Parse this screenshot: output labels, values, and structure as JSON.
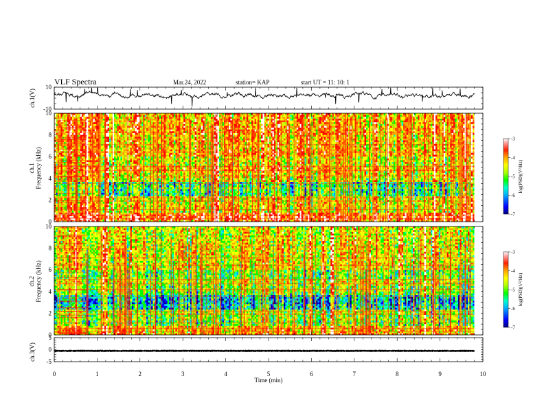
{
  "header": {
    "title": "VLF Spectra",
    "date": "Mar.24, 2022",
    "station": "station= KAP",
    "start": "start  UT =   11: 10: 1"
  },
  "chart_data": [
    {
      "type": "line",
      "panel": "ch1-waveform",
      "ylabel": "ch.1(V)",
      "ylim": [
        -10,
        10
      ],
      "yticks": [
        "10",
        "-10"
      ],
      "xlim": [
        0,
        10
      ],
      "series": [
        {
          "values_summary": "noisy signal oscillating roughly between -2 and 6 V over 0-9.8 min",
          "color": "#000000"
        }
      ]
    },
    {
      "type": "heatmap",
      "panel": "ch1-spectrogram",
      "ylabel": [
        "ch.1",
        "Frequency  (kHz)"
      ],
      "ylim": [
        0,
        10
      ],
      "yticks": [
        "0",
        "2",
        "4",
        "6",
        "8",
        "10"
      ],
      "xlim": [
        0,
        9.8
      ],
      "colorbar": {
        "label": "log(PSD)(V²/Hz)",
        "range": [
          -7,
          -3
        ],
        "ticks": [
          "-3",
          "-4",
          "-5",
          "-6",
          "-7"
        ]
      }
    },
    {
      "type": "heatmap",
      "panel": "ch2-spectrogram",
      "ylabel": [
        "ch.2",
        "Frequency  (kHz)"
      ],
      "ylim": [
        0,
        10
      ],
      "yticks": [
        "0",
        "2",
        "4",
        "6",
        "8",
        "10"
      ],
      "xlim": [
        0,
        9.8
      ],
      "colorbar": {
        "label": "log(PSD)(V²/Hz)",
        "range": [
          -7,
          -3
        ],
        "ticks": [
          "-3",
          "-4",
          "-5",
          "-6",
          "-7"
        ]
      }
    },
    {
      "type": "line",
      "panel": "ch3-waveform",
      "ylabel": "ch.3(V)",
      "ylim": [
        -5,
        5
      ],
      "yticks": [
        "5",
        "0",
        "-5"
      ],
      "xlim": [
        0,
        10
      ],
      "series": [
        {
          "values_summary": "dense trace around -0.5 V",
          "color": "#000000"
        }
      ]
    }
  ],
  "xaxis": {
    "label": "Time  (min)",
    "ticks": [
      "0",
      "1",
      "2",
      "3",
      "4",
      "5",
      "6",
      "7",
      "8",
      "9",
      "10"
    ]
  },
  "colors": {
    "scale": [
      "#000080",
      "#0000ff",
      "#00aaff",
      "#00ffcc",
      "#00ff00",
      "#aaff00",
      "#ffff00",
      "#ffa500",
      "#ff4000",
      "#ff0000",
      "#ffffff"
    ]
  }
}
